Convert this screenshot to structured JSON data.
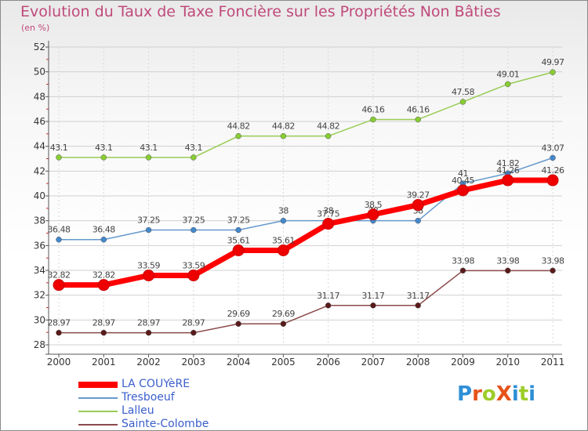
{
  "title": "Evolution du Taux de Taxe Foncière sur les Propriétés Non Bâties",
  "subtitle": "(en %)",
  "logo": {
    "text": "ProXiti",
    "letter_colors": [
      "#2f8fd6",
      "#e6531a",
      "#9ccd2a",
      "#e6531a",
      "#2f8fd6",
      "#9ccd2a",
      "#2f8fd6"
    ]
  },
  "chart_data": {
    "type": "line",
    "title": "Evolution du Taux de Taxe Foncière sur les Propriétés Non Bâties",
    "ylabel": "(en %)",
    "xlabel": "",
    "x": [
      2000,
      2001,
      2002,
      2003,
      2004,
      2005,
      2006,
      2007,
      2008,
      2009,
      2010,
      2011
    ],
    "ylim": [
      28,
      52
    ],
    "yticks": [
      28,
      30,
      32,
      34,
      36,
      38,
      40,
      42,
      44,
      46,
      48,
      50,
      52
    ],
    "grid": true,
    "legend_position": "bottom-left",
    "series": [
      {
        "name": "Lalleu",
        "color": "#99cc55",
        "point_color": "#88cc33",
        "emphasis": false,
        "values": [
          43.1,
          43.1,
          43.1,
          43.1,
          44.82,
          44.82,
          44.82,
          46.16,
          46.16,
          47.58,
          49.01,
          49.97
        ],
        "labels": [
          "43.1",
          "43.1",
          "43.1",
          "43.1",
          "44.82",
          "44.82",
          "44.82",
          "46.16",
          "46.16",
          "47.58",
          "49.01",
          "49.97"
        ]
      },
      {
        "name": "Tresboeuf",
        "color": "#6699cc",
        "point_color": "#4488cc",
        "emphasis": false,
        "values": [
          36.48,
          36.48,
          37.25,
          37.25,
          37.25,
          38,
          38,
          38,
          38,
          41,
          41.82,
          43.07
        ],
        "labels": [
          "36.48",
          "36.48",
          "37.25",
          "37.25",
          "37.25",
          "38",
          "38",
          "38",
          "38",
          "41",
          "41.82",
          "43.07"
        ]
      },
      {
        "name": "Sainte-Colombe",
        "color": "#8b4a4a",
        "point_color": "#5a1a1a",
        "emphasis": false,
        "values": [
          28.97,
          28.97,
          28.97,
          28.97,
          29.69,
          29.69,
          31.17,
          31.17,
          31.17,
          33.98,
          33.98,
          33.98
        ],
        "labels": [
          "28.97",
          "28.97",
          "28.97",
          "28.97",
          "29.69",
          "29.69",
          "31.17",
          "31.17",
          "31.17",
          "33.98",
          "33.98",
          "33.98"
        ]
      },
      {
        "name": "LA COUYèRE",
        "color": "#ff0000",
        "point_color": "#ee0000",
        "emphasis": true,
        "values": [
          32.82,
          32.82,
          33.59,
          33.59,
          35.61,
          35.61,
          37.75,
          38.5,
          39.27,
          40.45,
          41.26,
          41.26
        ],
        "labels": [
          "32.82",
          "32.82",
          "33.59",
          "33.59",
          "35.61",
          "35.61",
          "37.75",
          "38.5",
          "39.27",
          "40.45",
          "41.26",
          "41.26"
        ]
      }
    ],
    "legend_order": [
      "LA COUYèRE",
      "Tresboeuf",
      "Lalleu",
      "Sainte-Colombe"
    ]
  }
}
